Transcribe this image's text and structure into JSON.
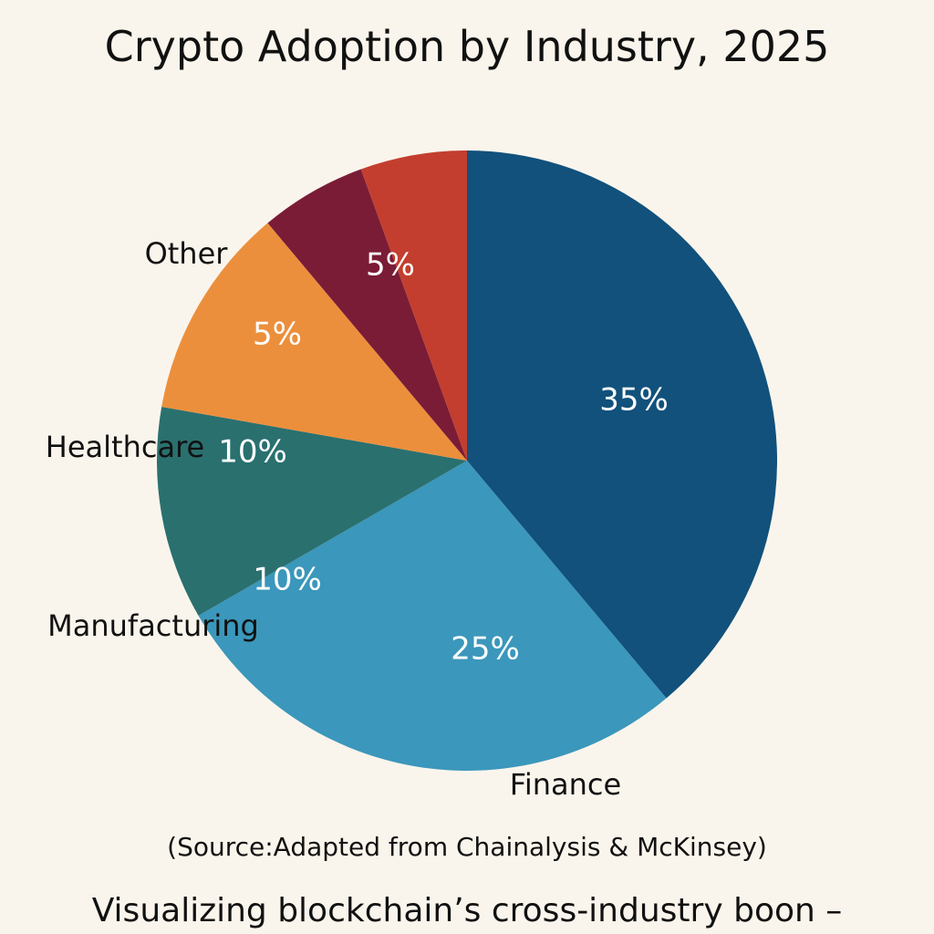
{
  "chart_data": {
    "type": "pie",
    "title": "Crypto Adoption by Industry, 2025",
    "slices": [
      {
        "label": "",
        "value": 35,
        "value_label": "35%",
        "color": "#11517c"
      },
      {
        "label": "Finance",
        "value": 25,
        "value_label": "25%",
        "color": "#3b97bb"
      },
      {
        "label": "Manufacturing",
        "value": 10,
        "value_label": "10%",
        "color": "#2a706f"
      },
      {
        "label": "Healthcare",
        "value": 10,
        "value_label": "10%",
        "color": "#ec8f3c"
      },
      {
        "label": "Other",
        "value": 5,
        "value_label": "5%",
        "color": "#7a1c36"
      },
      {
        "label": "",
        "value": 5,
        "value_label": "5%",
        "color": "#c33e2e"
      }
    ],
    "legend": "none",
    "source": "(Source:Adapted from Chainalysis & McKinsey)",
    "caption": "Visualizing blockchain’s cross-industry boon –"
  }
}
